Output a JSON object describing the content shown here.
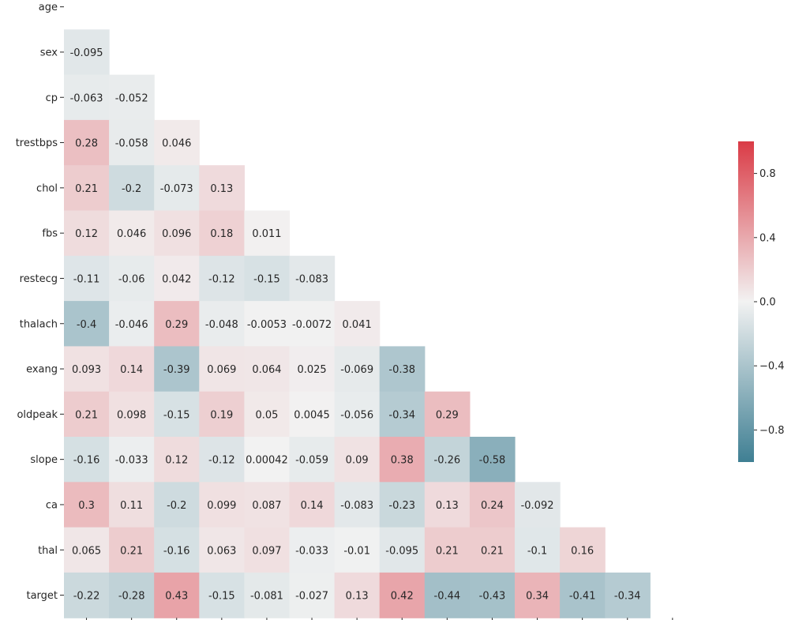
{
  "chart_data": {
    "type": "heatmap",
    "title": "",
    "variables": [
      "age",
      "sex",
      "cp",
      "trestbps",
      "chol",
      "fbs",
      "restecg",
      "thalach",
      "exang",
      "oldpeak",
      "slope",
      "ca",
      "thal",
      "target"
    ],
    "mask": "upper-triangle-including-diagonal",
    "values": [
      [],
      [
        -0.095
      ],
      [
        -0.063,
        -0.052
      ],
      [
        0.28,
        -0.058,
        0.046
      ],
      [
        0.21,
        -0.2,
        -0.073,
        0.13
      ],
      [
        0.12,
        0.046,
        0.096,
        0.18,
        0.011
      ],
      [
        -0.11,
        -0.06,
        0.042,
        -0.12,
        -0.15,
        -0.083
      ],
      [
        -0.4,
        -0.046,
        0.29,
        -0.048,
        -0.0053,
        -0.0072,
        0.041
      ],
      [
        0.093,
        0.14,
        -0.39,
        0.069,
        0.064,
        0.025,
        -0.069,
        -0.38
      ],
      [
        0.21,
        0.098,
        -0.15,
        0.19,
        0.05,
        0.0045,
        -0.056,
        -0.34,
        0.29
      ],
      [
        -0.16,
        -0.033,
        0.12,
        -0.12,
        0.00042,
        -0.059,
        0.09,
        0.38,
        -0.26,
        -0.58
      ],
      [
        0.3,
        0.11,
        -0.2,
        0.099,
        0.087,
        0.14,
        -0.083,
        -0.23,
        0.13,
        0.24,
        -0.092
      ],
      [
        0.065,
        0.21,
        -0.16,
        0.063,
        0.097,
        -0.033,
        -0.01,
        -0.095,
        0.21,
        0.21,
        -0.1,
        0.16
      ],
      [
        -0.22,
        -0.28,
        0.43,
        -0.15,
        -0.081,
        -0.027,
        0.13,
        0.42,
        -0.44,
        -0.43,
        0.34,
        -0.41,
        -0.34
      ]
    ],
    "labels": [
      [],
      [
        "-0.095"
      ],
      [
        "-0.063",
        "-0.052"
      ],
      [
        "0.28",
        "-0.058",
        "0.046"
      ],
      [
        "0.21",
        "-0.2",
        "-0.073",
        "0.13"
      ],
      [
        "0.12",
        "0.046",
        "0.096",
        "0.18",
        "0.011"
      ],
      [
        "-0.11",
        "-0.06",
        "0.042",
        "-0.12",
        "-0.15",
        "-0.083"
      ],
      [
        "-0.4",
        "-0.046",
        "0.29",
        "-0.048",
        "-0.0053",
        "-0.0072",
        "0.041"
      ],
      [
        "0.093",
        "0.14",
        "-0.39",
        "0.069",
        "0.064",
        "0.025",
        "-0.069",
        "-0.38"
      ],
      [
        "0.21",
        "0.098",
        "-0.15",
        "0.19",
        "0.05",
        "0.0045",
        "-0.056",
        "-0.34",
        "0.29"
      ],
      [
        "-0.16",
        "-0.033",
        "0.12",
        "-0.12",
        "0.00042",
        "-0.059",
        "0.09",
        "0.38",
        "-0.26",
        "-0.58"
      ],
      [
        "0.3",
        "0.11",
        "-0.2",
        "0.099",
        "0.087",
        "0.14",
        "-0.083",
        "-0.23",
        "0.13",
        "0.24",
        "-0.092"
      ],
      [
        "0.065",
        "0.21",
        "-0.16",
        "0.063",
        "0.097",
        "-0.033",
        "-0.01",
        "-0.095",
        "0.21",
        "0.21",
        "-0.1",
        "0.16"
      ],
      [
        "-0.22",
        "-0.28",
        "0.43",
        "-0.15",
        "-0.081",
        "-0.027",
        "0.13",
        "0.42",
        "-0.44",
        "-0.43",
        "0.34",
        "-0.41",
        "-0.34"
      ]
    ],
    "colorbar": {
      "vmin": -1,
      "vmax": 1,
      "ticks": [
        0.8,
        0.4,
        0.0,
        -0.4,
        -0.8
      ],
      "tick_labels": [
        "0.8",
        "0.4",
        "0.0",
        "−0.4",
        "−0.8"
      ],
      "negative_color": "#3f7f93",
      "center_color": "#f2f2f2",
      "positive_color": "#da3b46"
    },
    "grid": false,
    "legend": "colorbar-right"
  }
}
